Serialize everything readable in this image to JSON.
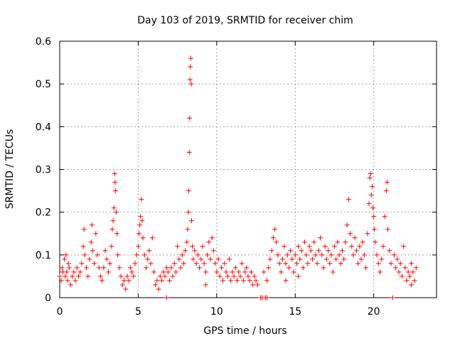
{
  "chart_data": {
    "type": "scatter",
    "title": "Day 103 of 2019, SRMTID for receiver chim",
    "xlabel": "GPS time / hours",
    "ylabel": "SRMTID / TECUs",
    "xlim": [
      0,
      24
    ],
    "ylim": [
      0,
      0.6
    ],
    "xticks": [
      0,
      5,
      10,
      15,
      20
    ],
    "xtick_labels": [
      "0",
      "5",
      "10",
      "15",
      "20"
    ],
    "yticks": [
      0,
      0.1,
      0.2,
      0.3,
      0.4,
      0.5,
      0.6
    ],
    "ytick_labels": [
      "0",
      "0.1",
      "0.2",
      "0.3",
      "0.4",
      "0.5",
      "0.6"
    ],
    "grid": true,
    "marker": "+",
    "color": "#ff0000",
    "series": [
      {
        "name": "SRMTID",
        "points": [
          [
            0.0,
            0.05
          ],
          [
            0.1,
            0.04
          ],
          [
            0.15,
            0.07
          ],
          [
            0.2,
            0.06
          ],
          [
            0.3,
            0.09
          ],
          [
            0.35,
            0.05
          ],
          [
            0.4,
            0.1
          ],
          [
            0.45,
            0.06
          ],
          [
            0.5,
            0.04
          ],
          [
            0.55,
            0.08
          ],
          [
            0.6,
            0.07
          ],
          [
            0.7,
            0.03
          ],
          [
            0.8,
            0.05
          ],
          [
            0.9,
            0.06
          ],
          [
            1.0,
            0.04
          ],
          [
            1.1,
            0.07
          ],
          [
            1.2,
            0.05
          ],
          [
            1.3,
            0.06
          ],
          [
            1.4,
            0.08
          ],
          [
            1.5,
            0.12
          ],
          [
            1.55,
            0.16
          ],
          [
            1.6,
            0.1
          ],
          [
            1.7,
            0.07
          ],
          [
            1.8,
            0.05
          ],
          [
            1.9,
            0.09
          ],
          [
            2.0,
            0.13
          ],
          [
            2.05,
            0.17
          ],
          [
            2.1,
            0.11
          ],
          [
            2.2,
            0.08
          ],
          [
            2.3,
            0.15
          ],
          [
            2.4,
            0.1
          ],
          [
            2.5,
            0.07
          ],
          [
            2.6,
            0.05
          ],
          [
            2.7,
            0.04
          ],
          [
            2.8,
            0.07
          ],
          [
            2.9,
            0.11
          ],
          [
            3.0,
            0.09
          ],
          [
            3.1,
            0.06
          ],
          [
            3.2,
            0.08
          ],
          [
            3.3,
            0.12
          ],
          [
            3.35,
            0.16
          ],
          [
            3.4,
            0.18
          ],
          [
            3.45,
            0.21
          ],
          [
            3.5,
            0.29
          ],
          [
            3.52,
            0.27
          ],
          [
            3.55,
            0.25
          ],
          [
            3.6,
            0.2
          ],
          [
            3.65,
            0.15
          ],
          [
            3.7,
            0.1
          ],
          [
            3.8,
            0.07
          ],
          [
            3.9,
            0.05
          ],
          [
            4.0,
            0.03
          ],
          [
            4.1,
            0.04
          ],
          [
            4.2,
            0.02
          ],
          [
            4.3,
            0.05
          ],
          [
            4.4,
            0.04
          ],
          [
            4.5,
            0.07
          ],
          [
            4.6,
            0.06
          ],
          [
            4.7,
            0.05
          ],
          [
            4.8,
            0.08
          ],
          [
            4.9,
            0.1
          ],
          [
            5.0,
            0.12
          ],
          [
            5.05,
            0.15
          ],
          [
            5.1,
            0.17
          ],
          [
            5.15,
            0.19
          ],
          [
            5.2,
            0.23
          ],
          [
            5.25,
            0.18
          ],
          [
            5.3,
            0.14
          ],
          [
            5.4,
            0.1
          ],
          [
            5.5,
            0.07
          ],
          [
            5.6,
            0.09
          ],
          [
            5.7,
            0.11
          ],
          [
            5.8,
            0.08
          ],
          [
            5.9,
            0.14
          ],
          [
            6.0,
            0.06
          ],
          [
            6.1,
            0.03
          ],
          [
            6.2,
            0.04
          ],
          [
            6.3,
            0.02
          ],
          [
            6.4,
            0.05
          ],
          [
            6.5,
            0.04
          ],
          [
            6.6,
            0.06
          ],
          [
            6.7,
            0.05
          ],
          [
            6.8,
            0.07
          ],
          [
            6.9,
            0.06
          ],
          [
            7.0,
            0.04
          ],
          [
            7.1,
            0.07
          ],
          [
            7.2,
            0.05
          ],
          [
            7.3,
            0.08
          ],
          [
            7.4,
            0.06
          ],
          [
            7.5,
            0.12
          ],
          [
            7.6,
            0.09
          ],
          [
            7.7,
            0.07
          ],
          [
            7.8,
            0.1
          ],
          [
            7.9,
            0.08
          ],
          [
            8.0,
            0.11
          ],
          [
            8.1,
            0.13
          ],
          [
            8.15,
            0.16
          ],
          [
            8.2,
            0.2
          ],
          [
            8.22,
            0.25
          ],
          [
            8.25,
            0.34
          ],
          [
            8.27,
            0.42
          ],
          [
            8.3,
            0.51
          ],
          [
            8.32,
            0.54
          ],
          [
            8.35,
            0.56
          ],
          [
            8.38,
            0.5
          ],
          [
            8.4,
            0.18
          ],
          [
            8.45,
            0.12
          ],
          [
            8.5,
            0.09
          ],
          [
            8.6,
            0.11
          ],
          [
            8.7,
            0.08
          ],
          [
            8.8,
            0.1
          ],
          [
            8.9,
            0.07
          ],
          [
            9.0,
            0.09
          ],
          [
            9.1,
            0.12
          ],
          [
            9.2,
            0.08
          ],
          [
            9.3,
            0.06
          ],
          [
            9.4,
            0.1
          ],
          [
            9.5,
            0.13
          ],
          [
            9.6,
            0.09
          ],
          [
            9.7,
            0.14
          ],
          [
            9.8,
            0.11
          ],
          [
            9.9,
            0.08
          ],
          [
            10.0,
            0.06
          ],
          [
            10.1,
            0.09
          ],
          [
            10.2,
            0.05
          ],
          [
            10.3,
            0.07
          ],
          [
            10.4,
            0.04
          ],
          [
            10.5,
            0.08
          ],
          [
            10.6,
            0.06
          ],
          [
            10.7,
            0.05
          ],
          [
            10.8,
            0.09
          ],
          [
            10.9,
            0.04
          ],
          [
            11.0,
            0.06
          ],
          [
            11.1,
            0.05
          ],
          [
            11.2,
            0.07
          ],
          [
            11.3,
            0.04
          ],
          [
            11.4,
            0.06
          ],
          [
            11.5,
            0.05
          ],
          [
            11.6,
            0.08
          ],
          [
            11.7,
            0.04
          ],
          [
            11.8,
            0.06
          ],
          [
            11.9,
            0.07
          ],
          [
            12.0,
            0.05
          ],
          [
            12.1,
            0.04
          ],
          [
            12.2,
            0.06
          ],
          [
            12.3,
            0.03
          ],
          [
            12.4,
            0.05
          ],
          [
            12.5,
            0.04
          ],
          [
            12.6,
            0.03
          ],
          [
            12.8,
            0.0
          ],
          [
            12.9,
            0.0
          ],
          [
            13.1,
            0.0
          ],
          [
            13.2,
            0.0
          ],
          [
            13.0,
            0.06
          ],
          [
            13.2,
            0.04
          ],
          [
            13.3,
            0.07
          ],
          [
            13.4,
            0.09
          ],
          [
            13.5,
            0.11
          ],
          [
            13.6,
            0.14
          ],
          [
            13.7,
            0.16
          ],
          [
            13.8,
            0.13
          ],
          [
            13.9,
            0.1
          ],
          [
            14.0,
            0.08
          ],
          [
            14.1,
            0.06
          ],
          [
            14.2,
            0.09
          ],
          [
            14.3,
            0.12
          ],
          [
            14.4,
            0.08
          ],
          [
            14.5,
            0.1
          ],
          [
            14.6,
            0.07
          ],
          [
            14.7,
            0.11
          ],
          [
            14.8,
            0.09
          ],
          [
            14.9,
            0.06
          ],
          [
            15.0,
            0.1
          ],
          [
            15.1,
            0.08
          ],
          [
            15.2,
            0.12
          ],
          [
            15.3,
            0.09
          ],
          [
            15.4,
            0.11
          ],
          [
            15.5,
            0.07
          ],
          [
            15.6,
            0.13
          ],
          [
            15.7,
            0.1
          ],
          [
            15.8,
            0.08
          ],
          [
            15.9,
            0.12
          ],
          [
            16.0,
            0.11
          ],
          [
            16.1,
            0.09
          ],
          [
            16.2,
            0.13
          ],
          [
            16.3,
            0.1
          ],
          [
            16.4,
            0.08
          ],
          [
            16.5,
            0.11
          ],
          [
            16.6,
            0.14
          ],
          [
            16.7,
            0.1
          ],
          [
            16.8,
            0.07
          ],
          [
            16.9,
            0.12
          ],
          [
            17.0,
            0.09
          ],
          [
            17.1,
            0.11
          ],
          [
            17.2,
            0.08
          ],
          [
            17.3,
            0.1
          ],
          [
            17.4,
            0.06
          ],
          [
            17.5,
            0.12
          ],
          [
            17.6,
            0.09
          ],
          [
            17.7,
            0.13
          ],
          [
            17.8,
            0.1
          ],
          [
            17.9,
            0.08
          ],
          [
            18.0,
            0.11
          ],
          [
            18.1,
            0.09
          ],
          [
            18.2,
            0.13
          ],
          [
            18.3,
            0.17
          ],
          [
            18.4,
            0.23
          ],
          [
            18.5,
            0.15
          ],
          [
            18.6,
            0.12
          ],
          [
            18.7,
            0.1
          ],
          [
            18.8,
            0.14
          ],
          [
            18.9,
            0.11
          ],
          [
            19.0,
            0.08
          ],
          [
            19.1,
            0.12
          ],
          [
            19.2,
            0.09
          ],
          [
            19.3,
            0.13
          ],
          [
            19.4,
            0.1
          ],
          [
            19.5,
            0.07
          ],
          [
            19.6,
            0.15
          ],
          [
            19.7,
            0.22
          ],
          [
            19.75,
            0.28
          ],
          [
            19.8,
            0.29
          ],
          [
            19.85,
            0.24
          ],
          [
            19.9,
            0.26
          ],
          [
            19.95,
            0.21
          ],
          [
            20.0,
            0.19
          ],
          [
            20.05,
            0.16
          ],
          [
            20.1,
            0.13
          ],
          [
            20.2,
            0.1
          ],
          [
            20.3,
            0.08
          ],
          [
            20.4,
            0.06
          ],
          [
            20.5,
            0.09
          ],
          [
            20.6,
            0.12
          ],
          [
            20.7,
            0.19
          ],
          [
            20.8,
            0.25
          ],
          [
            20.85,
            0.27
          ],
          [
            20.9,
            0.16
          ],
          [
            21.0,
            0.11
          ],
          [
            21.1,
            0.08
          ],
          [
            21.2,
            0.0
          ],
          [
            21.3,
            0.1
          ],
          [
            21.4,
            0.07
          ],
          [
            21.5,
            0.09
          ],
          [
            21.6,
            0.06
          ],
          [
            21.7,
            0.08
          ],
          [
            21.8,
            0.05
          ],
          [
            21.9,
            0.12
          ],
          [
            22.0,
            0.07
          ],
          [
            22.1,
            0.04
          ],
          [
            22.2,
            0.06
          ],
          [
            22.3,
            0.05
          ],
          [
            22.4,
            0.08
          ],
          [
            22.5,
            0.06
          ],
          [
            22.6,
            0.04
          ],
          [
            22.7,
            0.07
          ],
          [
            6.8,
            0.0
          ],
          [
            9.3,
            0.03
          ],
          [
            14.4,
            0.04
          ],
          [
            15.2,
            0.05
          ],
          [
            22.4,
            0.03
          ]
        ]
      }
    ]
  }
}
